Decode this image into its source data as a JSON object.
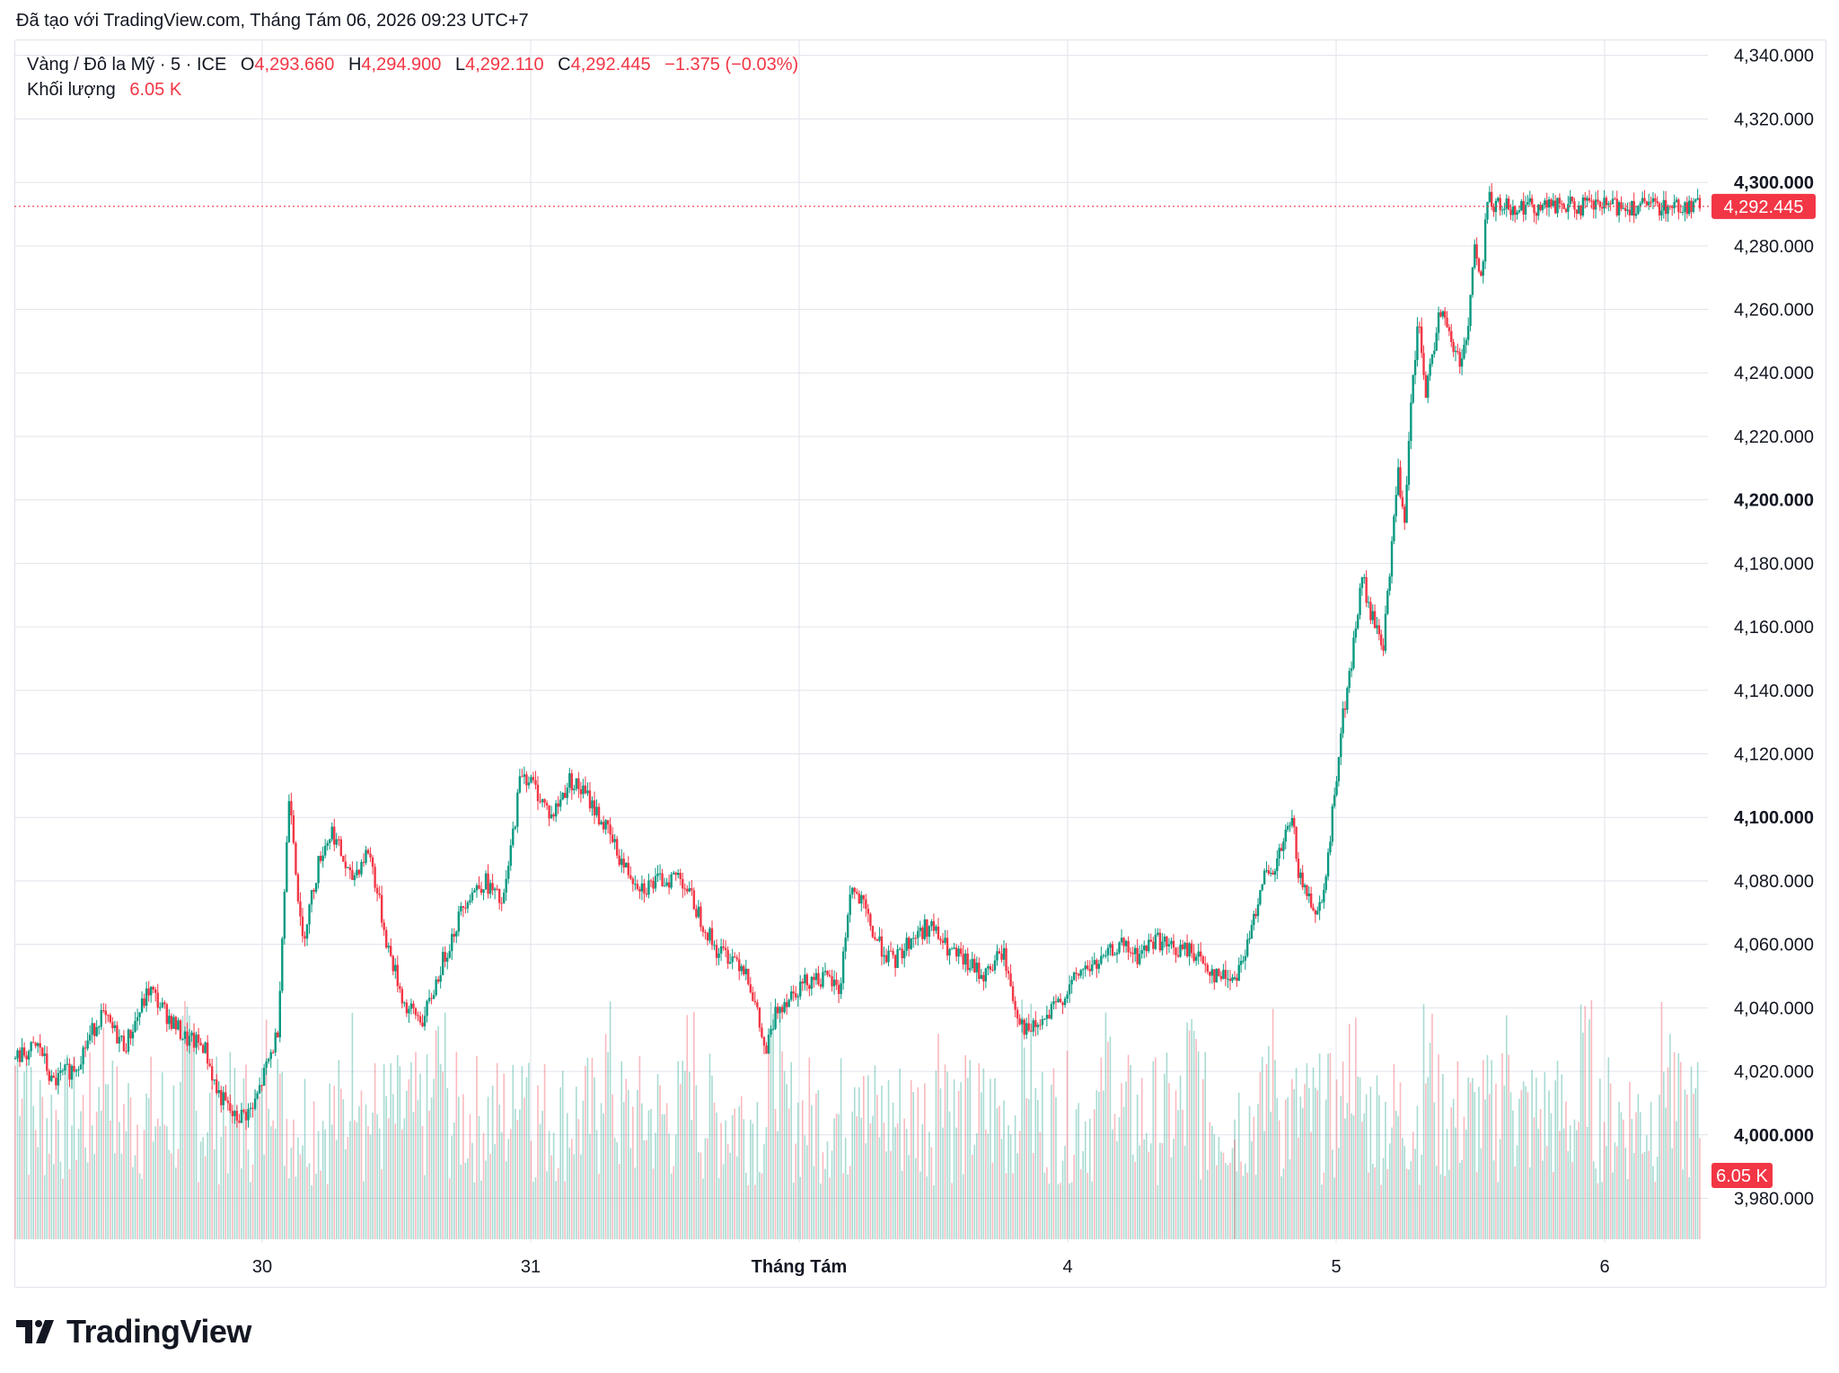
{
  "caption": "Đã tạo với TradingView.com, Tháng Tám 06, 2026 09:23 UTC+7",
  "legend": {
    "symbol": "Vàng / Đô la Mỹ · 5 · ICE",
    "open_label": "O",
    "open": "4,293.660",
    "high_label": "H",
    "high": "4,294.900",
    "low_label": "L",
    "low": "4,292.110",
    "close_label": "C",
    "close": "4,292.445",
    "change": "−1.375 (−0.03%)",
    "volume_label": "Khối lượng",
    "volume": "6.05 K"
  },
  "brand": "TradingView",
  "colors": {
    "up": "#089981",
    "down": "#f23645",
    "grid": "#e0e3eb",
    "text": "#131722"
  },
  "chart_data": {
    "type": "candlestick",
    "title": "",
    "y_axis": {
      "ticks": [
        "3,980.000",
        "4,000.000",
        "4,020.000",
        "4,040.000",
        "4,060.000",
        "4,080.000",
        "4,100.000",
        "4,120.000",
        "4,140.000",
        "4,160.000",
        "4,180.000",
        "4,200.000",
        "4,220.000",
        "4,240.000",
        "4,260.000",
        "4,280.000",
        "4,300.000",
        "4,320.000",
        "4,340.000"
      ],
      "bold_ticks": [
        "4,000.000",
        "4,100.000",
        "4,200.000",
        "4,300.000"
      ],
      "ylim": [
        3966,
        4345
      ],
      "position": "right"
    },
    "x_axis": {
      "ticks": [
        "30",
        "31",
        "Tháng Tám",
        "4",
        "5",
        "6"
      ],
      "bold_ticks": [
        "Tháng Tám"
      ]
    },
    "last_price": 4292.445,
    "last_price_label": "4,292.445",
    "last_volume_label": "6.05 K",
    "grid": true,
    "price_path": [
      [
        0.0,
        4024
      ],
      [
        0.02,
        4028
      ],
      [
        0.03,
        4016
      ],
      [
        0.05,
        4022
      ],
      [
        0.07,
        4038
      ],
      [
        0.09,
        4028
      ],
      [
        0.11,
        4046
      ],
      [
        0.12,
        4040
      ],
      [
        0.14,
        4030
      ],
      [
        0.155,
        4028
      ],
      [
        0.165,
        4014
      ],
      [
        0.18,
        4005
      ],
      [
        0.195,
        4008
      ],
      [
        0.205,
        4020
      ],
      [
        0.215,
        4032
      ],
      [
        0.225,
        4110
      ],
      [
        0.235,
        4060
      ],
      [
        0.25,
        4088
      ],
      [
        0.26,
        4096
      ],
      [
        0.275,
        4080
      ],
      [
        0.29,
        4090
      ],
      [
        0.305,
        4060
      ],
      [
        0.32,
        4040
      ],
      [
        0.335,
        4036
      ],
      [
        0.35,
        4054
      ],
      [
        0.37,
        4075
      ],
      [
        0.385,
        4080
      ],
      [
        0.4,
        4072
      ],
      [
        0.41,
        4100
      ],
      [
        0.415,
        4115
      ],
      [
        0.425,
        4110
      ],
      [
        0.44,
        4100
      ],
      [
        0.455,
        4112
      ],
      [
        0.47,
        4106
      ],
      [
        0.485,
        4096
      ],
      [
        0.5,
        4084
      ],
      [
        0.515,
        4078
      ],
      [
        0.53,
        4080
      ],
      [
        0.545,
        4082
      ],
      [
        0.56,
        4070
      ],
      [
        0.575,
        4058
      ],
      [
        0.59,
        4056
      ],
      [
        0.6,
        4052
      ],
      [
        0.61,
        4035
      ],
      [
        0.615,
        4025
      ],
      [
        0.625,
        4040
      ],
      [
        0.64,
        4046
      ],
      [
        0.655,
        4050
      ],
      [
        0.67,
        4048
      ],
      [
        0.676,
        4045
      ],
      [
        0.685,
        4078
      ],
      [
        0.695,
        4072
      ],
      [
        0.705,
        4062
      ],
      [
        0.72,
        4054
      ],
      [
        0.735,
        4062
      ],
      [
        0.75,
        4066
      ],
      [
        0.765,
        4058
      ],
      [
        0.78,
        4054
      ],
      [
        0.795,
        4050
      ],
      [
        0.81,
        4058
      ],
      [
        0.82,
        4040
      ],
      [
        0.83,
        4032
      ],
      [
        0.845,
        4036
      ],
      [
        0.86,
        4044
      ],
      [
        0.875,
        4052
      ],
      [
        0.89,
        4054
      ],
      [
        0.905,
        4060
      ],
      [
        0.92,
        4056
      ],
      [
        0.935,
        4062
      ],
      [
        0.95,
        4058
      ],
      [
        0.965,
        4058
      ],
      [
        0.975,
        4054
      ],
      [
        0.985,
        4050
      ],
      [
        1.0,
        4050
      ]
    ],
    "price_path_b": [
      [
        0.0,
        4050
      ],
      [
        0.03,
        4060
      ],
      [
        0.06,
        4082
      ],
      [
        0.08,
        4080
      ],
      [
        0.1,
        4090
      ],
      [
        0.115,
        4096
      ],
      [
        0.125,
        4098
      ],
      [
        0.14,
        4080
      ],
      [
        0.16,
        4075
      ],
      [
        0.18,
        4070
      ],
      [
        0.2,
        4086
      ],
      [
        0.215,
        4108
      ],
      [
        0.23,
        4130
      ],
      [
        0.245,
        4142
      ],
      [
        0.26,
        4160
      ],
      [
        0.275,
        4176
      ],
      [
        0.29,
        4164
      ],
      [
        0.305,
        4160
      ],
      [
        0.32,
        4154
      ],
      [
        0.335,
        4180
      ],
      [
        0.35,
        4210
      ],
      [
        0.365,
        4190
      ],
      [
        0.38,
        4232
      ],
      [
        0.395,
        4256
      ],
      [
        0.41,
        4234
      ],
      [
        0.425,
        4244
      ],
      [
        0.44,
        4262
      ],
      [
        0.455,
        4254
      ],
      [
        0.47,
        4248
      ],
      [
        0.485,
        4244
      ],
      [
        0.5,
        4252
      ],
      [
        0.515,
        4280
      ],
      [
        0.53,
        4268
      ],
      [
        0.545,
        4300
      ],
      [
        0.555,
        4290
      ],
      [
        0.56,
        4292.445
      ]
    ],
    "volume_max_label": "6.05 K"
  }
}
